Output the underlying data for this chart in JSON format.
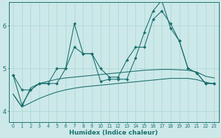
{
  "xlabel": "Humidex (Indice chaleur)",
  "background_color": "#cce8e8",
  "line_color": "#1a6e6e",
  "grid_color": "#aad4d4",
  "x_ticks": [
    0,
    1,
    2,
    3,
    4,
    5,
    6,
    7,
    8,
    9,
    10,
    11,
    12,
    13,
    14,
    15,
    16,
    17,
    18,
    19,
    20,
    21,
    22,
    23
  ],
  "ylim": [
    3.75,
    6.55
  ],
  "yticks": [
    4,
    5,
    6
  ],
  "line_spiky1_y": [
    4.85,
    4.5,
    4.5,
    4.65,
    4.65,
    5.0,
    5.0,
    5.5,
    5.35,
    5.35,
    5.0,
    4.8,
    4.8,
    5.2,
    5.5,
    5.5,
    6.15,
    6.35,
    6.05,
    5.65,
    5.0,
    4.9,
    4.65,
    4.65
  ],
  "line_spiky2_y": [
    4.85,
    4.15,
    4.5,
    4.65,
    4.65,
    4.65,
    5.0,
    6.05,
    5.35,
    5.35,
    4.7,
    4.75,
    4.75,
    4.75,
    5.25,
    5.85,
    6.35,
    6.6,
    5.95,
    5.65,
    5.0,
    4.9,
    4.65,
    4.65
  ],
  "line_smooth1_y": [
    4.4,
    4.1,
    4.55,
    4.65,
    4.7,
    4.75,
    4.78,
    4.8,
    4.82,
    4.84,
    4.86,
    4.88,
    4.9,
    4.92,
    4.94,
    4.96,
    4.97,
    4.98,
    4.98,
    4.97,
    4.96,
    4.92,
    4.82,
    4.78
  ],
  "line_smooth2_y": [
    4.4,
    4.1,
    4.2,
    4.3,
    4.38,
    4.45,
    4.5,
    4.54,
    4.57,
    4.59,
    4.61,
    4.63,
    4.65,
    4.67,
    4.69,
    4.71,
    4.73,
    4.75,
    4.77,
    4.77,
    4.77,
    4.74,
    4.68,
    4.64
  ]
}
